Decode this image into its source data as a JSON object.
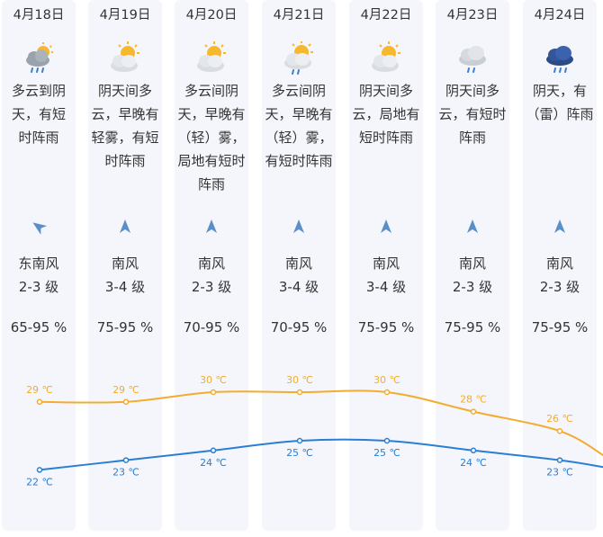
{
  "forecast": {
    "days": [
      {
        "date": "4月18日",
        "icon": "cloudy-to-overcast-rain-icon",
        "description": "多云到阴天，有短时阵雨",
        "wind_direction": "东南风",
        "wind_level": "2-3 级",
        "humidity": "65-95 %",
        "high": "29 ℃",
        "low": "22 ℃"
      },
      {
        "date": "4月19日",
        "icon": "sun-behind-cloud-icon",
        "description": "阴天间多云，早晚有轻雾，有短时阵雨",
        "wind_direction": "南风",
        "wind_level": "3-4 级",
        "humidity": "75-95 %",
        "high": "29 ℃",
        "low": "23 ℃"
      },
      {
        "date": "4月20日",
        "icon": "sun-behind-cloud-icon",
        "description": "多云间阴天，早晚有（轻）雾，局地有短时阵雨",
        "wind_direction": "南风",
        "wind_level": "2-3 级",
        "humidity": "70-95 %",
        "high": "30 ℃",
        "low": "24 ℃"
      },
      {
        "date": "4月21日",
        "icon": "sun-behind-cloud-rain-icon",
        "description": "多云间阴天，早晚有（轻）雾，有短时阵雨",
        "wind_direction": "南风",
        "wind_level": "3-4 级",
        "humidity": "70-95 %",
        "high": "30 ℃",
        "low": "25 ℃"
      },
      {
        "date": "4月22日",
        "icon": "sun-behind-cloud-icon",
        "description": "阴天间多云，局地有短时阵雨",
        "wind_direction": "南风",
        "wind_level": "3-4 级",
        "humidity": "75-95 %",
        "high": "30 ℃",
        "low": "25 ℃"
      },
      {
        "date": "4月23日",
        "icon": "cloud-rain-icon",
        "description": "阴天间多云，有短时阵雨",
        "wind_direction": "南风",
        "wind_level": "2-3 级",
        "humidity": "75-95 %",
        "high": "28 ℃",
        "low": "24 ℃"
      },
      {
        "date": "4月24日",
        "icon": "thunderstorm-cloud-icon",
        "description": "阴天，有（雷）阵雨",
        "wind_direction": "南风",
        "wind_level": "2-3 级",
        "humidity": "75-95 %",
        "high": "26 ℃",
        "low": "23 ℃"
      }
    ]
  },
  "chart_data": {
    "type": "line",
    "categories": [
      "4月18日",
      "4月19日",
      "4月20日",
      "4月21日",
      "4月22日",
      "4月23日",
      "4月24日"
    ],
    "series": [
      {
        "values": [
          29,
          29,
          30,
          30,
          30,
          28,
          26
        ]
      },
      {
        "values": [
          22,
          23,
          24,
          25,
          25,
          24,
          23
        ]
      }
    ],
    "unit": "℃"
  },
  "colors": {
    "high_line": "#f2ad2e",
    "low_line": "#2a7fd4",
    "column_bg": "#f4f6fb",
    "wind_arrow": "#5a8fc8"
  }
}
